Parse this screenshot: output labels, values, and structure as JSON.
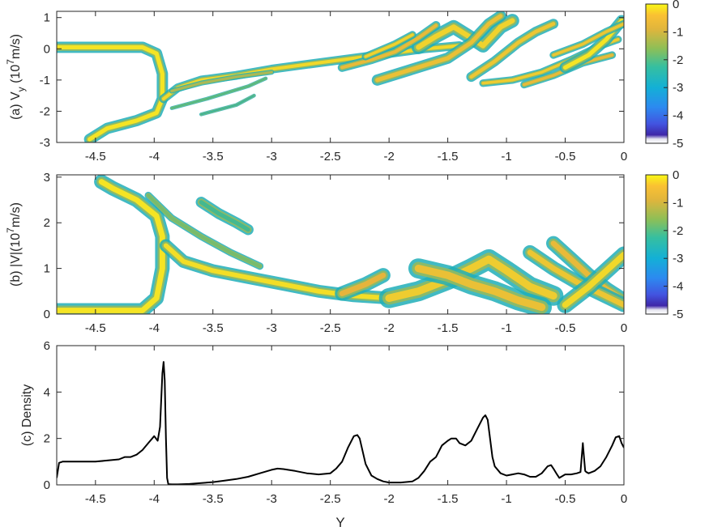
{
  "chart_data": [
    {
      "type": "heatmap",
      "panel": "a",
      "ylabel_parts": {
        "prefix": "(a) V",
        "sub": "y",
        "mid": " (10",
        "sup": "7",
        "suffix": "m/s)"
      },
      "xlim": [
        -4.83,
        0
      ],
      "ylim": [
        -3,
        1.2
      ],
      "xticks": [
        -4.5,
        -4,
        -3.5,
        -3,
        -2.5,
        -2,
        -1.5,
        -1,
        -0.5,
        0
      ],
      "xtick_labels": [
        "-4.5",
        "-4",
        "-3.5",
        "-3",
        "-2.5",
        "-2",
        "-1.5",
        "-1",
        "-0.5",
        "0"
      ],
      "yticks": [
        -3,
        -2,
        -1,
        0,
        1
      ],
      "ytick_labels": [
        "-3",
        "-2",
        "-1",
        "0",
        "1"
      ],
      "colorbar": {
        "range": [
          -5,
          0
        ],
        "ticks": [
          0,
          -1,
          -2,
          -3,
          -4,
          -5
        ],
        "tick_labels": [
          "0",
          "-1",
          "-2",
          "-3",
          "-4",
          "-5"
        ]
      },
      "streams": [
        {
          "level": -0.2,
          "width": 0.18,
          "points": [
            [
              -4.83,
              0.05
            ],
            [
              -4.1,
              0.05
            ],
            [
              -3.98,
              -0.15
            ],
            [
              -3.93,
              -0.8
            ],
            [
              -3.93,
              -1.6
            ],
            [
              -3.98,
              -2.05
            ],
            [
              -4.15,
              -2.3
            ],
            [
              -4.4,
              -2.55
            ],
            [
              -4.55,
              -2.9
            ]
          ]
        },
        {
          "level": -0.4,
          "width": 0.14,
          "points": [
            [
              -3.92,
              -1.6
            ],
            [
              -3.8,
              -1.25
            ],
            [
              -3.6,
              -1.0
            ],
            [
              -3.3,
              -0.85
            ],
            [
              -3.0,
              -0.65
            ],
            [
              -2.6,
              -0.45
            ],
            [
              -2.3,
              -0.3
            ],
            [
              -2.0,
              -0.15
            ],
            [
              -1.7,
              0.0
            ],
            [
              -1.55,
              0.05
            ],
            [
              -1.4,
              0.1
            ]
          ]
        },
        {
          "level": -1.4,
          "width": 0.08,
          "points": [
            [
              -3.85,
              -1.35
            ],
            [
              -3.6,
              -1.1
            ],
            [
              -3.3,
              -0.9
            ],
            [
              -3.0,
              -0.75
            ]
          ]
        },
        {
          "level": -2.2,
          "width": 0.06,
          "points": [
            [
              -3.85,
              -1.9
            ],
            [
              -3.55,
              -1.6
            ],
            [
              -3.2,
              -1.2
            ],
            [
              -3.05,
              -0.95
            ]
          ]
        },
        {
          "level": -2.5,
          "width": 0.06,
          "points": [
            [
              -3.6,
              -2.1
            ],
            [
              -3.3,
              -1.8
            ],
            [
              -3.15,
              -1.5
            ]
          ]
        },
        {
          "level": -0.5,
          "width": 0.22,
          "points": [
            [
              -1.75,
              0.05
            ],
            [
              -1.6,
              0.4
            ],
            [
              -1.45,
              0.7
            ],
            [
              -1.3,
              0.35
            ],
            [
              -1.2,
              0.1
            ],
            [
              -1.05,
              0.7
            ],
            [
              -0.95,
              0.9
            ]
          ]
        },
        {
          "level": -0.8,
          "width": 0.18,
          "points": [
            [
              -2.1,
              -1.0
            ],
            [
              -1.8,
              -0.65
            ],
            [
              -1.5,
              -0.3
            ],
            [
              -1.3,
              0.2
            ],
            [
              -1.15,
              0.8
            ],
            [
              -1.05,
              1.05
            ]
          ]
        },
        {
          "level": -0.9,
          "width": 0.14,
          "points": [
            [
              -2.4,
              -0.6
            ],
            [
              -2.15,
              -0.35
            ],
            [
              -1.95,
              -0.1
            ],
            [
              -1.75,
              0.35
            ],
            [
              -1.6,
              0.75
            ]
          ]
        },
        {
          "level": -0.7,
          "width": 0.16,
          "points": [
            [
              -1.3,
              -0.9
            ],
            [
              -1.1,
              -0.4
            ],
            [
              -0.9,
              0.2
            ],
            [
              -0.75,
              0.55
            ],
            [
              -0.6,
              0.8
            ]
          ]
        },
        {
          "level": -0.6,
          "width": 0.12,
          "points": [
            [
              -1.2,
              -1.1
            ],
            [
              -0.95,
              -1.0
            ],
            [
              -0.7,
              -0.75
            ],
            [
              -0.45,
              -0.35
            ],
            [
              -0.2,
              0.1
            ],
            [
              -0.05,
              0.3
            ]
          ]
        },
        {
          "level": -0.9,
          "width": 0.12,
          "points": [
            [
              -0.85,
              -1.15
            ],
            [
              -0.6,
              -0.85
            ],
            [
              -0.35,
              -0.45
            ],
            [
              -0.1,
              -0.2
            ]
          ]
        },
        {
          "level": -0.2,
          "width": 0.18,
          "points": [
            [
              -0.5,
              -0.6
            ],
            [
              -0.3,
              -0.2
            ],
            [
              -0.15,
              0.3
            ],
            [
              -0.02,
              0.9
            ]
          ]
        },
        {
          "level": -0.7,
          "width": 0.12,
          "points": [
            [
              -0.6,
              -0.2
            ],
            [
              -0.35,
              0.15
            ],
            [
              -0.15,
              0.55
            ],
            [
              0.0,
              0.8
            ]
          ]
        },
        {
          "level": -0.5,
          "width": 0.12,
          "points": [
            [
              -2.2,
              -0.25
            ],
            [
              -1.95,
              0.15
            ],
            [
              -1.8,
              0.45
            ]
          ]
        }
      ]
    },
    {
      "type": "heatmap",
      "panel": "b",
      "ylabel_parts": {
        "prefix": "(b) |V|(10",
        "sup": "7",
        "suffix": "m/s)"
      },
      "xlim": [
        -4.83,
        0
      ],
      "ylim": [
        0,
        3.05
      ],
      "xticks": [
        -4.5,
        -4,
        -3.5,
        -3,
        -2.5,
        -2,
        -1.5,
        -1,
        -0.5,
        0
      ],
      "xtick_labels": [
        "-4.5",
        "-4",
        "-3.5",
        "-3",
        "-2.5",
        "-2",
        "-1.5",
        "-1",
        "-0.5",
        "0"
      ],
      "yticks": [
        0,
        1,
        2,
        3
      ],
      "ytick_labels": [
        "0",
        "1",
        "2",
        "3"
      ],
      "colorbar": {
        "range": [
          -5,
          0
        ],
        "ticks": [
          0,
          -1,
          -2,
          -3,
          -4,
          -5
        ],
        "tick_labels": [
          "0",
          "-1",
          "-2",
          "-3",
          "-4",
          "-5"
        ]
      },
      "streams": [
        {
          "level": -0.2,
          "width": 0.16,
          "points": [
            [
              -4.83,
              0.08
            ],
            [
              -4.1,
              0.08
            ],
            [
              -3.98,
              0.35
            ],
            [
              -3.93,
              1.0
            ],
            [
              -3.93,
              1.7
            ],
            [
              -3.98,
              2.15
            ],
            [
              -4.15,
              2.5
            ],
            [
              -4.35,
              2.75
            ],
            [
              -4.45,
              2.9
            ]
          ]
        },
        {
          "level": -0.3,
          "width": 0.14,
          "points": [
            [
              -3.9,
              1.5
            ],
            [
              -3.75,
              1.15
            ],
            [
              -3.5,
              0.95
            ],
            [
              -3.2,
              0.8
            ],
            [
              -2.9,
              0.65
            ],
            [
              -2.6,
              0.5
            ],
            [
              -2.3,
              0.4
            ],
            [
              -2.0,
              0.35
            ]
          ]
        },
        {
          "level": -1.8,
          "width": 0.08,
          "points": [
            [
              -4.05,
              2.6
            ],
            [
              -3.85,
              2.1
            ],
            [
              -3.6,
              1.7
            ],
            [
              -3.35,
              1.35
            ],
            [
              -3.1,
              1.05
            ]
          ]
        },
        {
          "level": -2.3,
          "width": 0.12,
          "points": [
            [
              -3.6,
              2.45
            ],
            [
              -3.45,
              2.2
            ],
            [
              -3.3,
              2.0
            ],
            [
              -3.2,
              1.85
            ]
          ]
        },
        {
          "level": -0.6,
          "width": 0.22,
          "points": [
            [
              -2.0,
              0.35
            ],
            [
              -1.75,
              0.5
            ],
            [
              -1.5,
              0.75
            ],
            [
              -1.3,
              1.0
            ],
            [
              -1.15,
              1.2
            ],
            [
              -1.0,
              0.95
            ],
            [
              -0.8,
              0.6
            ],
            [
              -0.6,
              0.4
            ]
          ]
        },
        {
          "level": -0.8,
          "width": 0.22,
          "points": [
            [
              -1.75,
              1.0
            ],
            [
              -1.5,
              0.85
            ],
            [
              -1.3,
              0.65
            ],
            [
              -1.1,
              0.5
            ],
            [
              -0.9,
              0.3
            ],
            [
              -0.7,
              0.15
            ]
          ]
        },
        {
          "level": -1.0,
          "width": 0.16,
          "points": [
            [
              -2.4,
              0.45
            ],
            [
              -2.2,
              0.65
            ],
            [
              -2.05,
              0.85
            ]
          ]
        },
        {
          "level": -0.9,
          "width": 0.16,
          "points": [
            [
              -0.6,
              1.55
            ],
            [
              -0.45,
              1.2
            ],
            [
              -0.3,
              0.85
            ],
            [
              -0.15,
              0.55
            ],
            [
              0.0,
              0.3
            ]
          ]
        },
        {
          "level": -0.7,
          "width": 0.16,
          "points": [
            [
              -0.8,
              1.35
            ],
            [
              -0.6,
              1.0
            ],
            [
              -0.4,
              0.7
            ],
            [
              -0.2,
              0.45
            ],
            [
              0.0,
              0.2
            ]
          ]
        },
        {
          "level": -0.4,
          "width": 0.18,
          "points": [
            [
              -0.5,
              0.2
            ],
            [
              -0.3,
              0.6
            ],
            [
              -0.15,
              0.95
            ],
            [
              0.0,
              1.3
            ]
          ]
        }
      ]
    },
    {
      "type": "line",
      "panel": "c",
      "ylabel": "(c) Density",
      "xlabel": "Y",
      "xlim": [
        -4.83,
        0
      ],
      "ylim": [
        0,
        6
      ],
      "xticks": [
        -4.5,
        -4,
        -3.5,
        -3,
        -2.5,
        -2,
        -1.5,
        -1,
        -0.5,
        0
      ],
      "xtick_labels": [
        "-4.5",
        "-4",
        "-3.5",
        "-3",
        "-2.5",
        "-2",
        "-1.5",
        "-1",
        "-0.5",
        "0"
      ],
      "yticks": [
        0,
        2,
        4,
        6
      ],
      "ytick_labels": [
        "0",
        "2",
        "4",
        "6"
      ],
      "series": [
        {
          "color": "#000000",
          "x": [
            -4.83,
            -4.81,
            -4.78,
            -4.7,
            -4.6,
            -4.5,
            -4.4,
            -4.3,
            -4.25,
            -4.2,
            -4.15,
            -4.1,
            -4.05,
            -4.0,
            -3.97,
            -3.95,
            -3.93,
            -3.92,
            -3.91,
            -3.9,
            -3.89,
            -3.88,
            -3.85,
            -3.8,
            -3.7,
            -3.6,
            -3.5,
            -3.4,
            -3.3,
            -3.2,
            -3.1,
            -3.0,
            -2.95,
            -2.9,
            -2.8,
            -2.7,
            -2.6,
            -2.5,
            -2.45,
            -2.4,
            -2.35,
            -2.3,
            -2.27,
            -2.25,
            -2.2,
            -2.15,
            -2.1,
            -2.05,
            -2.0,
            -1.9,
            -1.8,
            -1.75,
            -1.7,
            -1.65,
            -1.6,
            -1.55,
            -1.5,
            -1.47,
            -1.43,
            -1.4,
            -1.35,
            -1.3,
            -1.25,
            -1.2,
            -1.18,
            -1.16,
            -1.14,
            -1.12,
            -1.1,
            -1.05,
            -1.0,
            -0.95,
            -0.9,
            -0.85,
            -0.8,
            -0.75,
            -0.7,
            -0.65,
            -0.62,
            -0.6,
            -0.57,
            -0.55,
            -0.5,
            -0.45,
            -0.4,
            -0.37,
            -0.35,
            -0.34,
            -0.33,
            -0.32,
            -0.3,
            -0.25,
            -0.2,
            -0.15,
            -0.1,
            -0.07,
            -0.04,
            -0.02,
            0.0
          ],
          "y": [
            0.3,
            0.95,
            1.0,
            1.0,
            1.0,
            1.0,
            1.05,
            1.1,
            1.2,
            1.2,
            1.3,
            1.5,
            1.8,
            2.1,
            1.9,
            2.5,
            4.8,
            5.3,
            4.5,
            2.0,
            0.3,
            0.03,
            0.02,
            0.02,
            0.04,
            0.08,
            0.12,
            0.18,
            0.25,
            0.35,
            0.5,
            0.65,
            0.7,
            0.68,
            0.6,
            0.5,
            0.45,
            0.5,
            0.7,
            1.0,
            1.6,
            2.1,
            2.15,
            2.0,
            0.9,
            0.4,
            0.25,
            0.15,
            0.1,
            0.1,
            0.15,
            0.3,
            0.6,
            1.0,
            1.2,
            1.7,
            1.9,
            2.0,
            2.0,
            1.8,
            1.7,
            1.9,
            2.4,
            2.9,
            3.0,
            2.8,
            2.0,
            1.2,
            0.8,
            0.5,
            0.4,
            0.45,
            0.5,
            0.45,
            0.35,
            0.35,
            0.5,
            0.8,
            0.85,
            0.7,
            0.45,
            0.3,
            0.45,
            0.45,
            0.5,
            0.55,
            1.8,
            1.2,
            0.6,
            0.55,
            0.5,
            0.6,
            0.8,
            1.2,
            1.7,
            2.05,
            2.1,
            1.8,
            1.6
          ]
        }
      ]
    }
  ]
}
